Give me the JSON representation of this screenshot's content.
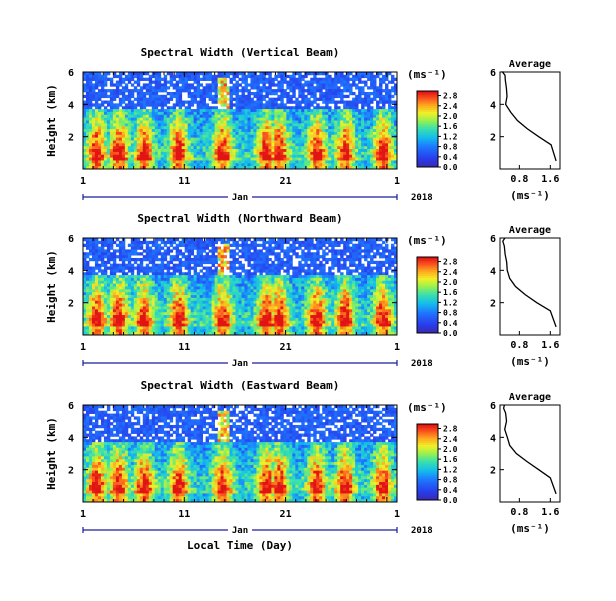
{
  "chart_data": [
    {
      "type": "heatmap",
      "title": "Spectral Width (Vertical Beam)",
      "ylabel": "Height (km)",
      "y_tick_labels": [
        "6",
        "4",
        "2"
      ],
      "x_tick_labels": [
        "1",
        "11",
        "21",
        "1"
      ],
      "x_month_label": "Jan",
      "year_label": "2018",
      "ylim": [
        0,
        6
      ],
      "colorbar_unit": "(ms⁻¹)",
      "colorbar_ticks": [
        "2.8",
        "2.4",
        "2.0",
        "1.6",
        "1.2",
        "0.8",
        "0.4",
        "0.0"
      ],
      "colorbar_range": [
        0,
        2.8
      ],
      "grid": "none",
      "notes": "High spectral width (red, >2 ms^-1) concentrated below ~3 km; upper heights mostly blue with white gaps (no data)."
    },
    {
      "type": "line",
      "title": "Average",
      "y_tick_labels": [
        "6",
        "4",
        "2"
      ],
      "x_tick_labels": [
        "0.8",
        "1.6"
      ],
      "xlabel": "(ms⁻¹)",
      "ylim": [
        0,
        6
      ],
      "series": [
        {
          "x": [
            1.75,
            1.62,
            1.3,
            1.0,
            0.75,
            0.58,
            0.48,
            0.45,
            0.43,
            0.42,
            0.41,
            0.4,
            0.4
          ],
          "y": [
            0.5,
            1.5,
            2.0,
            2.5,
            3.0,
            3.5,
            4.0,
            4.5,
            5.0,
            5.5,
            5.8,
            6.0,
            6.0
          ]
        }
      ]
    },
    {
      "type": "heatmap",
      "title": "Spectral Width (Northward Beam)",
      "ylabel": "Height (km)",
      "y_tick_labels": [
        "6",
        "4",
        "2"
      ],
      "x_tick_labels": [
        "1",
        "11",
        "21",
        "1"
      ],
      "x_month_label": "Jan",
      "year_label": "2018",
      "ylim": [
        0,
        6
      ],
      "colorbar_unit": "(ms⁻¹)",
      "colorbar_ticks": [
        "2.8",
        "2.4",
        "2.0",
        "1.6",
        "1.2",
        "0.8",
        "0.4",
        "0.0"
      ],
      "colorbar_range": [
        0,
        2.8
      ],
      "grid": "none"
    },
    {
      "type": "line",
      "title": "Average",
      "y_tick_labels": [
        "6",
        "4",
        "2"
      ],
      "x_tick_labels": [
        "0.8",
        "1.6"
      ],
      "xlabel": "(ms⁻¹)",
      "ylim": [
        0,
        6
      ],
      "series": [
        {
          "x": [
            1.75,
            1.6,
            1.25,
            0.95,
            0.7,
            0.55,
            0.47,
            0.44,
            0.42,
            0.41,
            0.4,
            0.4
          ],
          "y": [
            0.5,
            1.5,
            2.0,
            2.5,
            3.0,
            3.5,
            4.0,
            4.5,
            5.0,
            5.5,
            5.8,
            6.0
          ]
        }
      ]
    },
    {
      "type": "heatmap",
      "title": "Spectral Width (Eastward Beam)",
      "ylabel": "Height (km)",
      "xlabel": "Local Time (Day)",
      "y_tick_labels": [
        "6",
        "4",
        "2"
      ],
      "x_tick_labels": [
        "1",
        "11",
        "21",
        "1"
      ],
      "x_month_label": "Jan",
      "year_label": "2018",
      "ylim": [
        0,
        6
      ],
      "colorbar_unit": "(ms⁻¹)",
      "colorbar_ticks": [
        "2.8",
        "2.4",
        "2.0",
        "1.6",
        "1.2",
        "0.8",
        "0.4",
        "0.0"
      ],
      "colorbar_range": [
        0,
        2.8
      ],
      "grid": "none"
    },
    {
      "type": "line",
      "title": "Average",
      "y_tick_labels": [
        "6",
        "4",
        "2"
      ],
      "x_tick_labels": [
        "0.8",
        "1.6"
      ],
      "xlabel": "(ms⁻¹)",
      "ylim": [
        0,
        6
      ],
      "series": [
        {
          "x": [
            1.75,
            1.6,
            1.3,
            1.0,
            0.72,
            0.55,
            0.48,
            0.45,
            0.43,
            0.42,
            0.41,
            0.4
          ],
          "y": [
            0.5,
            1.5,
            2.0,
            2.5,
            3.0,
            3.5,
            4.0,
            4.5,
            5.0,
            5.5,
            5.8,
            6.0
          ]
        }
      ]
    }
  ]
}
